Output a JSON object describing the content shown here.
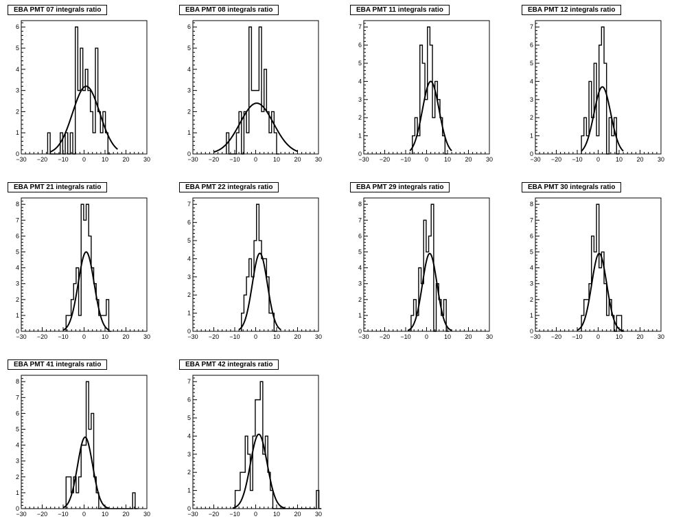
{
  "chart_data": [
    {
      "type": "bar",
      "title": "EBA PMT 07 integrals ratio",
      "xlim": [
        -30,
        30
      ],
      "ylim": [
        0,
        6.3
      ],
      "x_ticks": [
        -30,
        -20,
        -10,
        0,
        10,
        20,
        30
      ],
      "y_ticks": [
        1,
        2,
        3,
        4,
        5,
        6
      ],
      "bin_width": 1.2,
      "bins": [
        [
          -17.4,
          1
        ],
        [
          -16.2,
          0
        ],
        [
          -11.4,
          1
        ],
        [
          -10.2,
          0
        ],
        [
          -9,
          1
        ],
        [
          -7.8,
          0
        ],
        [
          -6.6,
          1
        ],
        [
          -5.4,
          0
        ],
        [
          -4.2,
          6
        ],
        [
          -3,
          3
        ],
        [
          -1.8,
          5
        ],
        [
          -0.6,
          3
        ],
        [
          0.6,
          4
        ],
        [
          1.8,
          3
        ],
        [
          3,
          2
        ],
        [
          4.2,
          1
        ],
        [
          5.4,
          5
        ],
        [
          6.6,
          2
        ],
        [
          7.8,
          1
        ],
        [
          9,
          2
        ],
        [
          10.2,
          1
        ],
        [
          11.4,
          0
        ]
      ],
      "fit": {
        "type": "gaussian",
        "amplitude": 3.2,
        "mean": 1.0,
        "sigma": 6.5,
        "range": [
          -16,
          16
        ]
      }
    },
    {
      "type": "bar",
      "title": "EBA PMT 08 integrals ratio",
      "xlim": [
        -30,
        30
      ],
      "ylim": [
        0,
        6.3
      ],
      "x_ticks": [
        -30,
        -20,
        -10,
        0,
        10,
        20,
        30
      ],
      "y_ticks": [
        1,
        2,
        3,
        4,
        5,
        6
      ],
      "bin_width": 1.2,
      "bins": [
        [
          -14,
          1
        ],
        [
          -12.8,
          0
        ],
        [
          -9.2,
          1
        ],
        [
          -8,
          2
        ],
        [
          -6.8,
          0
        ],
        [
          -5.6,
          2
        ],
        [
          -4.4,
          1
        ],
        [
          -3.2,
          6
        ],
        [
          -2,
          3
        ],
        [
          -0.8,
          3
        ],
        [
          0.4,
          3
        ],
        [
          1.6,
          6
        ],
        [
          2.8,
          2
        ],
        [
          4,
          4
        ],
        [
          5.2,
          2
        ],
        [
          6.4,
          1
        ],
        [
          7.6,
          2
        ],
        [
          8.8,
          1
        ],
        [
          10,
          0
        ]
      ],
      "fit": {
        "type": "gaussian",
        "amplitude": 2.4,
        "mean": 0.5,
        "sigma": 8.0,
        "range": [
          -20,
          20
        ]
      }
    },
    {
      "type": "bar",
      "title": "EBA PMT 11 integrals ratio",
      "xlim": [
        -30,
        30
      ],
      "ylim": [
        0,
        7.35
      ],
      "x_ticks": [
        -30,
        -20,
        -10,
        0,
        10,
        20,
        30
      ],
      "y_ticks": [
        1,
        2,
        3,
        4,
        5,
        6,
        7
      ],
      "bin_width": 1.2,
      "bins": [
        [
          -6.8,
          1
        ],
        [
          -5.6,
          2
        ],
        [
          -4.4,
          1
        ],
        [
          -3.2,
          6
        ],
        [
          -2,
          5
        ],
        [
          -0.8,
          3
        ],
        [
          0.4,
          7
        ],
        [
          1.6,
          6
        ],
        [
          2.8,
          2
        ],
        [
          4,
          4
        ],
        [
          5.2,
          3
        ],
        [
          6.4,
          2
        ],
        [
          7.6,
          1
        ],
        [
          8.8,
          0
        ]
      ],
      "fit": {
        "type": "gaussian",
        "amplitude": 4.0,
        "mean": 2.0,
        "sigma": 4.0,
        "range": [
          -8,
          12
        ]
      }
    },
    {
      "type": "bar",
      "title": "EBA PMT 12 integrals ratio",
      "xlim": [
        -30,
        30
      ],
      "ylim": [
        0,
        7.35
      ],
      "x_ticks": [
        -30,
        -20,
        -10,
        0,
        10,
        20,
        30
      ],
      "y_ticks": [
        1,
        2,
        3,
        4,
        5,
        6,
        7
      ],
      "bin_width": 1.2,
      "bins": [
        [
          -8,
          1
        ],
        [
          -6.8,
          2
        ],
        [
          -5.6,
          1
        ],
        [
          -4.4,
          4
        ],
        [
          -3.2,
          2
        ],
        [
          -2,
          5
        ],
        [
          -0.8,
          1
        ],
        [
          0.4,
          6
        ],
        [
          1.6,
          7
        ],
        [
          2.8,
          5
        ],
        [
          4,
          0
        ],
        [
          5.2,
          2
        ],
        [
          6.4,
          1
        ],
        [
          7.6,
          2
        ],
        [
          8.8,
          0
        ]
      ],
      "fit": {
        "type": "gaussian",
        "amplitude": 3.7,
        "mean": 2.0,
        "sigma": 4.0,
        "range": [
          -8,
          12
        ]
      }
    },
    {
      "type": "bar",
      "title": "EBA PMT 21 integrals ratio",
      "xlim": [
        -30,
        30
      ],
      "ylim": [
        0,
        8.4
      ],
      "x_ticks": [
        -30,
        -20,
        -10,
        0,
        10,
        20,
        30
      ],
      "y_ticks": [
        1,
        2,
        3,
        4,
        5,
        6,
        7,
        8
      ],
      "bin_width": 1.2,
      "bins": [
        [
          -8.6,
          1
        ],
        [
          -7.4,
          1
        ],
        [
          -6.2,
          2
        ],
        [
          -5,
          3
        ],
        [
          -3.8,
          4
        ],
        [
          -2.6,
          1
        ],
        [
          -1.4,
          8
        ],
        [
          -0.2,
          7
        ],
        [
          1,
          8
        ],
        [
          2.2,
          6
        ],
        [
          3.4,
          4
        ],
        [
          4.6,
          3
        ],
        [
          5.8,
          2
        ],
        [
          7,
          1
        ],
        [
          8.2,
          1
        ],
        [
          9.4,
          1
        ],
        [
          10.6,
          2
        ],
        [
          11.8,
          0
        ]
      ],
      "fit": {
        "type": "gaussian",
        "amplitude": 5.0,
        "mean": 1.0,
        "sigma": 3.8,
        "range": [
          -10,
          12
        ]
      }
    },
    {
      "type": "bar",
      "title": "EBA PMT 22 integrals ratio",
      "xlim": [
        -30,
        30
      ],
      "ylim": [
        0,
        7.35
      ],
      "x_ticks": [
        -30,
        -20,
        -10,
        0,
        10,
        20,
        30
      ],
      "y_ticks": [
        1,
        2,
        3,
        4,
        5,
        6,
        7
      ],
      "bin_width": 1.2,
      "bins": [
        [
          -6.8,
          1
        ],
        [
          -5.6,
          2
        ],
        [
          -4.4,
          3
        ],
        [
          -3.2,
          4
        ],
        [
          -2,
          3
        ],
        [
          -0.8,
          5
        ],
        [
          0.4,
          7
        ],
        [
          1.6,
          5
        ],
        [
          2.8,
          4
        ],
        [
          4,
          4
        ],
        [
          5.2,
          3
        ],
        [
          6.4,
          1
        ],
        [
          7.6,
          1
        ],
        [
          8.8,
          0
        ]
      ],
      "fit": {
        "type": "gaussian",
        "amplitude": 4.3,
        "mean": 2.0,
        "sigma": 3.6,
        "range": [
          -8,
          12
        ]
      }
    },
    {
      "type": "bar",
      "title": "EBA PMT 29 integrals ratio",
      "xlim": [
        -30,
        30
      ],
      "ylim": [
        0,
        8.4
      ],
      "x_ticks": [
        -30,
        -20,
        -10,
        0,
        10,
        20,
        30
      ],
      "y_ticks": [
        1,
        2,
        3,
        4,
        5,
        6,
        7,
        8
      ],
      "bin_width": 1.2,
      "bins": [
        [
          -7.4,
          1
        ],
        [
          -6.2,
          2
        ],
        [
          -5,
          1
        ],
        [
          -3.8,
          4
        ],
        [
          -2.6,
          3
        ],
        [
          -1.4,
          7
        ],
        [
          -0.2,
          5
        ],
        [
          1,
          6
        ],
        [
          2.2,
          8
        ],
        [
          3.4,
          0
        ],
        [
          4.6,
          3
        ],
        [
          5.8,
          2
        ],
        [
          7,
          1
        ],
        [
          8.2,
          2
        ],
        [
          9.4,
          0
        ]
      ],
      "fit": {
        "type": "gaussian",
        "amplitude": 4.9,
        "mean": 1.5,
        "sigma": 3.5,
        "range": [
          -9,
          12
        ]
      }
    },
    {
      "type": "bar",
      "title": "EBA PMT 30 integrals ratio",
      "xlim": [
        -30,
        30
      ],
      "ylim": [
        0,
        8.4
      ],
      "x_ticks": [
        -30,
        -20,
        -10,
        0,
        10,
        20,
        30
      ],
      "y_ticks": [
        1,
        2,
        3,
        4,
        5,
        6,
        7,
        8
      ],
      "bin_width": 1.2,
      "bins": [
        [
          -8,
          1
        ],
        [
          -6.8,
          2
        ],
        [
          -5.6,
          2
        ],
        [
          -4.4,
          3
        ],
        [
          -3.2,
          6
        ],
        [
          -2,
          5
        ],
        [
          -0.8,
          8
        ],
        [
          0.4,
          4
        ],
        [
          1.6,
          5
        ],
        [
          2.8,
          3
        ],
        [
          4,
          1
        ],
        [
          5.2,
          2
        ],
        [
          6.4,
          1
        ],
        [
          7.6,
          0
        ],
        [
          8.8,
          1
        ],
        [
          10,
          1
        ],
        [
          11.2,
          0
        ]
      ],
      "fit": {
        "type": "gaussian",
        "amplitude": 4.9,
        "mean": 0.5,
        "sigma": 3.6,
        "range": [
          -10,
          12
        ]
      }
    },
    {
      "type": "bar",
      "title": "EBA PMT 41 integrals ratio",
      "xlim": [
        -30,
        30
      ],
      "ylim": [
        0,
        8.4
      ],
      "x_ticks": [
        -30,
        -20,
        -10,
        0,
        10,
        20,
        30
      ],
      "y_ticks": [
        1,
        2,
        3,
        4,
        5,
        6,
        7,
        8
      ],
      "bin_width": 1.2,
      "bins": [
        [
          -8.6,
          2
        ],
        [
          -7.4,
          2
        ],
        [
          -6.2,
          1
        ],
        [
          -5,
          2
        ],
        [
          -3.8,
          1
        ],
        [
          -2.6,
          2
        ],
        [
          -1.4,
          4
        ],
        [
          -0.2,
          4
        ],
        [
          1,
          8
        ],
        [
          2.2,
          5
        ],
        [
          3.4,
          6
        ],
        [
          4.6,
          2
        ],
        [
          5.8,
          1
        ],
        [
          7,
          0
        ],
        [
          23.2,
          1
        ],
        [
          24.4,
          0
        ]
      ],
      "fit": {
        "type": "gaussian",
        "amplitude": 4.5,
        "mean": 0.5,
        "sigma": 3.6,
        "range": [
          -10,
          12
        ]
      }
    },
    {
      "type": "bar",
      "title": "EBA PMT 42 integrals ratio",
      "xlim": [
        -30,
        30
      ],
      "ylim": [
        0,
        7.35
      ],
      "x_ticks": [
        -30,
        -20,
        -10,
        0,
        10,
        20,
        30
      ],
      "y_ticks": [
        1,
        2,
        3,
        4,
        5,
        6,
        7
      ],
      "bin_width": 1.2,
      "bins": [
        [
          -9.8,
          1
        ],
        [
          -8.6,
          1
        ],
        [
          -7.4,
          2
        ],
        [
          -6.2,
          2
        ],
        [
          -5,
          4
        ],
        [
          -3.8,
          3
        ],
        [
          -2.6,
          1
        ],
        [
          -1.4,
          4
        ],
        [
          -0.2,
          6
        ],
        [
          1,
          6
        ],
        [
          2.2,
          7
        ],
        [
          3.4,
          3
        ],
        [
          4.6,
          4
        ],
        [
          5.8,
          2
        ],
        [
          7,
          1
        ],
        [
          8.2,
          0
        ],
        [
          29,
          1
        ],
        [
          30.2,
          0
        ]
      ],
      "fit": {
        "type": "gaussian",
        "amplitude": 4.1,
        "mean": 1.5,
        "sigma": 4.0,
        "range": [
          -11,
          14
        ]
      }
    }
  ]
}
